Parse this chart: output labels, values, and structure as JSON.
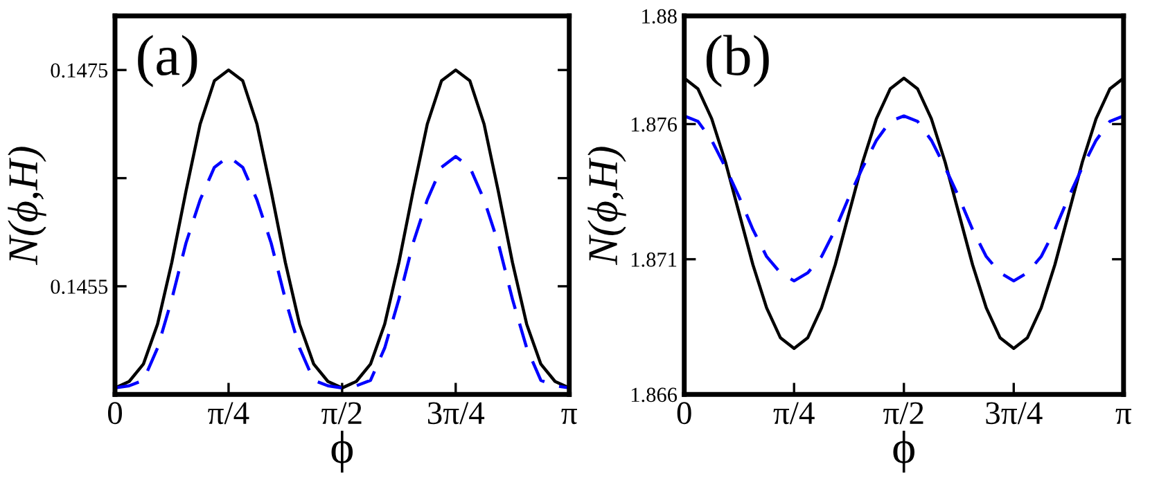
{
  "chart_data": [
    {
      "type": "line",
      "xlabel": "ϕ",
      "ylabel": "N(ϕ,H)",
      "annotations": [
        "(a)"
      ],
      "x": [
        0,
        0.0982,
        0.1963,
        0.2945,
        0.3927,
        0.4909,
        0.589,
        0.6872,
        0.7854,
        0.8836,
        0.9817,
        1.0799,
        1.1781,
        1.2763,
        1.3744,
        1.4726,
        1.5708,
        1.669,
        1.7671,
        1.8653,
        1.9635,
        2.0617,
        2.1598,
        2.258,
        2.3562,
        2.4544,
        2.5525,
        2.6507,
        2.7489,
        2.8471,
        2.9452,
        3.0434,
        3.1416
      ],
      "series": [
        {
          "color": "#000000",
          "line_style": "solid",
          "values": [
            0.14456,
            0.14462,
            0.14478,
            0.14515,
            0.14572,
            0.14638,
            0.147,
            0.1474,
            0.1475,
            0.1474,
            0.147,
            0.14638,
            0.14572,
            0.14515,
            0.14478,
            0.14462,
            0.14456,
            0.14462,
            0.14478,
            0.14515,
            0.14572,
            0.14638,
            0.147,
            0.1474,
            0.1475,
            0.1474,
            0.147,
            0.14638,
            0.14572,
            0.14515,
            0.14478,
            0.14462,
            0.14456
          ]
        },
        {
          "color": "#0000ff",
          "line_style": "dashed",
          "values": [
            0.14456,
            0.14458,
            0.14463,
            0.14493,
            0.14538,
            0.1459,
            0.1463,
            0.1466,
            0.1467,
            0.1466,
            0.1463,
            0.1459,
            0.14538,
            0.14493,
            0.14463,
            0.14458,
            0.14456,
            0.14458,
            0.14463,
            0.14493,
            0.14538,
            0.1459,
            0.1463,
            0.1466,
            0.1467,
            0.1466,
            0.1463,
            0.1459,
            0.14538,
            0.14493,
            0.14463,
            0.14458,
            0.14456
          ]
        }
      ],
      "xlim": [
        0,
        3.1416
      ],
      "xticks": [
        {
          "value": 0,
          "label": "0"
        },
        {
          "value": 0.7854,
          "label": "π/4"
        },
        {
          "value": 1.5708,
          "label": "π/2"
        },
        {
          "value": 2.3562,
          "label": "3π/4"
        },
        {
          "value": 3.1416,
          "label": "π"
        }
      ],
      "ylim": [
        0.1445,
        0.148
      ],
      "yticks": [
        0.1455,
        {
          "value": 0.1465,
          "label": null
        },
        0.1475
      ],
      "grid": false
    },
    {
      "type": "line",
      "xlabel": "ϕ",
      "ylabel": "N(ϕ,H)",
      "annotations": [
        "(b)"
      ],
      "x": [
        0,
        0.0982,
        0.1963,
        0.2945,
        0.3927,
        0.4909,
        0.589,
        0.6872,
        0.7854,
        0.8836,
        0.9817,
        1.0799,
        1.1781,
        1.2763,
        1.3744,
        1.4726,
        1.5708,
        1.669,
        1.7671,
        1.8653,
        1.9635,
        2.0617,
        2.1598,
        2.258,
        2.3562,
        2.4544,
        2.5525,
        2.6507,
        2.7489,
        2.8471,
        2.9452,
        3.0434,
        3.1416
      ],
      "series": [
        {
          "color": "#000000",
          "line_style": "solid",
          "values": [
            1.8777,
            1.8773,
            1.8762,
            1.8746,
            1.8727,
            1.8708,
            1.8692,
            1.8681,
            1.8677,
            1.8681,
            1.8692,
            1.8708,
            1.8727,
            1.8746,
            1.8762,
            1.8773,
            1.8777,
            1.8773,
            1.8762,
            1.8746,
            1.8727,
            1.8708,
            1.8692,
            1.8681,
            1.8677,
            1.8681,
            1.8692,
            1.8708,
            1.8727,
            1.8746,
            1.8762,
            1.8773,
            1.8777
          ]
        },
        {
          "color": "#0000ff",
          "line_style": "dashed",
          "values": [
            1.8763,
            1.8761,
            1.8754,
            1.8744,
            1.8733,
            1.8721,
            1.8711,
            1.8705,
            1.8702,
            1.8705,
            1.8711,
            1.8721,
            1.8733,
            1.8744,
            1.8754,
            1.8761,
            1.8763,
            1.8761,
            1.8754,
            1.8744,
            1.8733,
            1.8721,
            1.8711,
            1.8705,
            1.8702,
            1.8705,
            1.8711,
            1.8721,
            1.8733,
            1.8744,
            1.8754,
            1.8761,
            1.8763
          ]
        }
      ],
      "xlim": [
        0,
        3.1416
      ],
      "xticks": [
        {
          "value": 0,
          "label": "0"
        },
        {
          "value": 0.7854,
          "label": "π/4"
        },
        {
          "value": 1.5708,
          "label": "π/2"
        },
        {
          "value": 2.3562,
          "label": "3π/4"
        },
        {
          "value": 3.1416,
          "label": "π"
        }
      ],
      "ylim": [
        1.866,
        1.88
      ],
      "yticks": [
        1.866,
        1.871,
        1.876,
        1.88
      ],
      "grid": false
    }
  ]
}
